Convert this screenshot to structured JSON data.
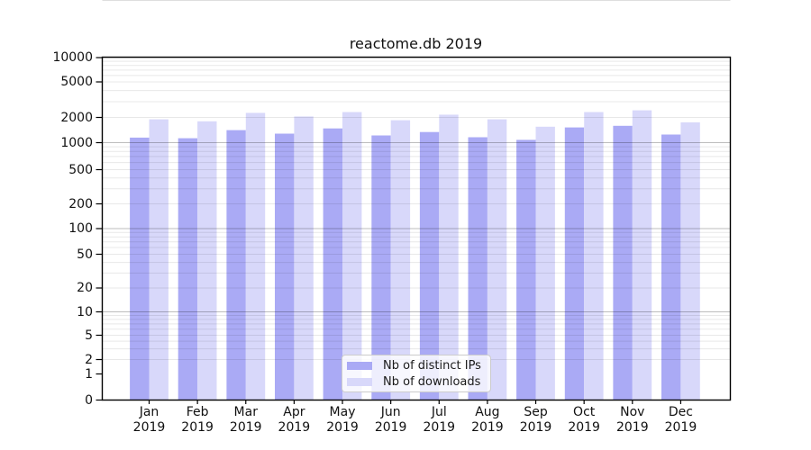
{
  "chart_data": {
    "type": "bar",
    "title": "reactome.db 2019",
    "categories": [
      "Jan",
      "Feb",
      "Mar",
      "Apr",
      "May",
      "Jun",
      "Jul",
      "Aug",
      "Sep",
      "Oct",
      "Nov",
      "Dec"
    ],
    "year_label": "2019",
    "series": [
      {
        "name": "Nb of distinct IPs",
        "color": "#aaaaf5",
        "values": [
          1150,
          1130,
          1410,
          1280,
          1480,
          1220,
          1340,
          1160,
          1080,
          1520,
          1590,
          1250
        ]
      },
      {
        "name": "Nb of downloads",
        "color": "#d8d8fa",
        "values": [
          1900,
          1800,
          2250,
          2050,
          2300,
          1850,
          2150,
          1900,
          1550,
          2300,
          2400,
          1750
        ]
      }
    ],
    "xlabel": "",
    "ylabel": "",
    "y_ticks": [
      0,
      1,
      2,
      5,
      10,
      20,
      50,
      100,
      200,
      500,
      1000,
      2000,
      5000,
      10000
    ],
    "ylim": [
      0,
      10000
    ],
    "y_scale": "symlog",
    "grid": "on",
    "legend_position": "lower center"
  }
}
